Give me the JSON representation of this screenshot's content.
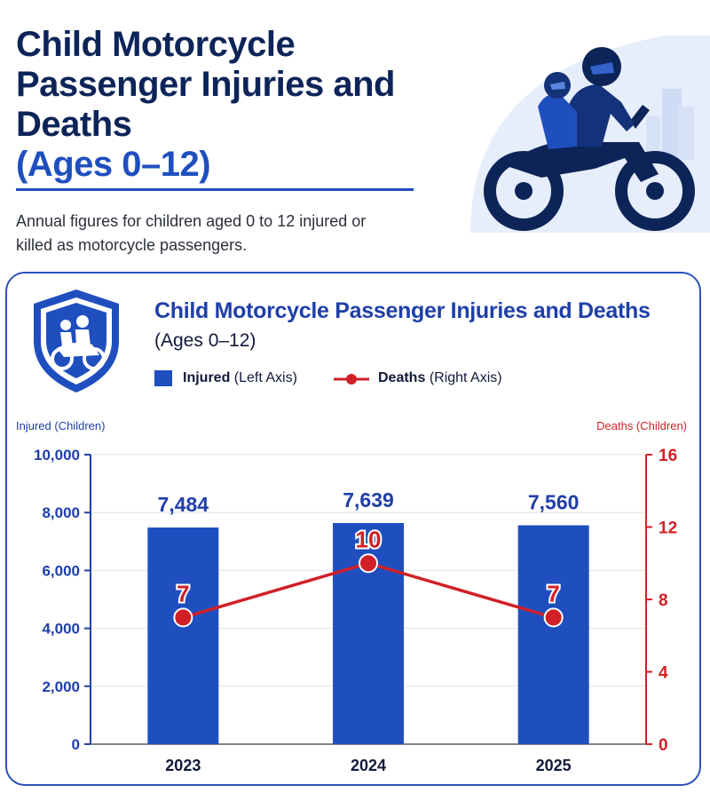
{
  "header": {
    "title_line1": "Child Motorcycle",
    "title_line2": "Passenger Injuries and Deaths",
    "title_line3": "(Ages 0–12)",
    "subtitle": "Annual figures for children aged 0 to 12 injured or killed as motorcycle passengers."
  },
  "colors": {
    "bar": "#1f4fbf",
    "line": "#d12027",
    "navy": "#0d2459"
  },
  "legend": {
    "injured_name": "Injured",
    "injured_axis": "(Left Axis)",
    "deaths_name": "Deaths",
    "deaths_axis": "(Right Axis)"
  },
  "chart_data": {
    "type": "bar",
    "title": "Child Motorcycle Passenger Injuries and Deaths",
    "subtitle": "(Ages 0–12)",
    "categories": [
      "2023",
      "2024",
      "2025"
    ],
    "series": [
      {
        "name": "Injured",
        "type": "bar",
        "axis": "left",
        "values": [
          7484,
          7639,
          7560
        ],
        "labels": [
          "7,484",
          "7,639",
          "7,560"
        ]
      },
      {
        "name": "Deaths",
        "type": "line",
        "axis": "right",
        "values": [
          7,
          10,
          7
        ],
        "labels": [
          "7",
          "10",
          "7"
        ]
      }
    ],
    "ylabel_left": "Injured (Children)",
    "ylabel_right": "Deaths (Children)",
    "ylim_left": [
      0,
      10000
    ],
    "ylim_right": [
      0,
      16
    ],
    "yticks_left": [
      "0",
      "2,000",
      "4,000",
      "6,000",
      "8,000",
      "10,000"
    ],
    "yticks_right": [
      "0",
      "4",
      "8",
      "12",
      "16"
    ],
    "grid": true,
    "legend_position": "top"
  }
}
